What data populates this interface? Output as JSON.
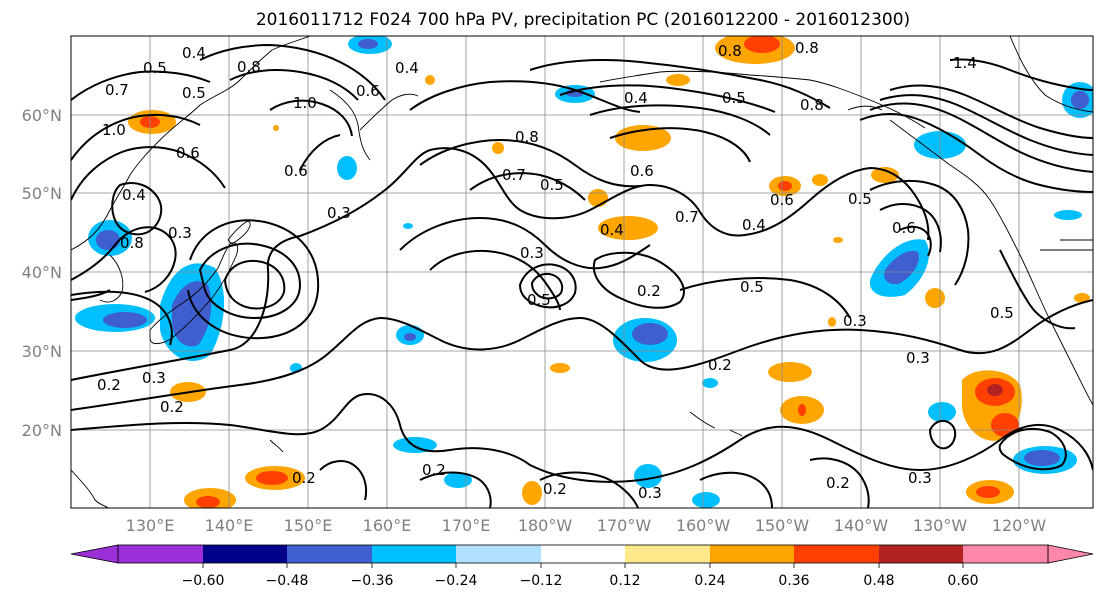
{
  "title": "2016011712 F024 700 hPa PV, precipitation PC (2016012200 - 2016012300)",
  "map": {
    "lon_labels": [
      "130°E",
      "140°E",
      "150°E",
      "160°E",
      "170°E",
      "180°W",
      "170°W",
      "160°W",
      "150°W",
      "140°W",
      "130°W",
      "120°W"
    ],
    "lat_labels": [
      "60°N",
      "50°N",
      "40°N",
      "30°N",
      "20°N"
    ],
    "contour_labels": [
      "0.4",
      "0.5",
      "0.8",
      "0.4",
      "1.0",
      "0.7",
      "0.5",
      "1.0",
      "0.6",
      "0.6",
      "0.4",
      "0.3",
      "0.3",
      "0.8",
      "0.7",
      "0.5",
      "0.8",
      "0.4",
      "0.5",
      "0.8",
      "0.6",
      "0.7",
      "0.4",
      "0.6",
      "0.3",
      "0.2",
      "0.5",
      "0.5",
      "0.4",
      "0.3",
      "0.2",
      "0.2",
      "0.3",
      "0.2",
      "0.2",
      "0.2",
      "0.2",
      "0.3",
      "0.2",
      "0.3",
      "0.3",
      "0.5",
      "0.6",
      "0.5",
      "1.4",
      "0.8",
      "0.8",
      "0.6"
    ]
  },
  "colorbar": {
    "colors": [
      "#9b30d9",
      "#00008b",
      "#3f5fcf",
      "#00bfff",
      "#b0e2ff",
      "#ffffff",
      "#ffe98a",
      "#ffa500",
      "#ff4000",
      "#b22222",
      "#ff88aa"
    ],
    "tick_labels": [
      "−0.60",
      "−0.48",
      "−0.36",
      "−0.24",
      "−0.12",
      "0.12",
      "0.24",
      "0.36",
      "0.48",
      "0.60"
    ]
  }
}
